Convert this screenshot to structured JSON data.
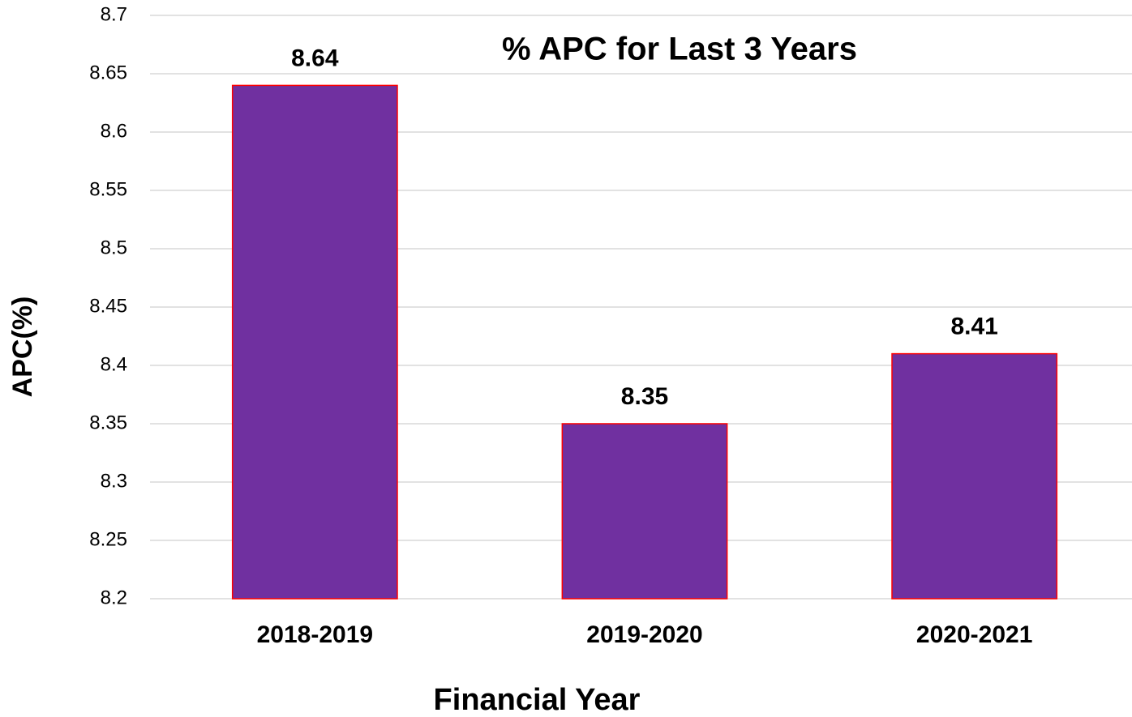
{
  "chart_data": {
    "type": "bar",
    "title": "% APC for Last 3 Years",
    "x_label": "Financial Year",
    "y_label": "APC(%)",
    "categories": [
      "2018-2019",
      "2019-2020",
      "2020-2021"
    ],
    "values": [
      8.64,
      8.35,
      8.41
    ],
    "color": "#7030a0",
    "edge_color": "#ff0000",
    "ylim": [
      8.2,
      8.7
    ],
    "yticks": [
      8.2,
      8.25,
      8.3,
      8.35,
      8.4,
      8.45,
      8.5,
      8.55,
      8.6,
      8.65,
      8.7
    ],
    "grid": true
  }
}
